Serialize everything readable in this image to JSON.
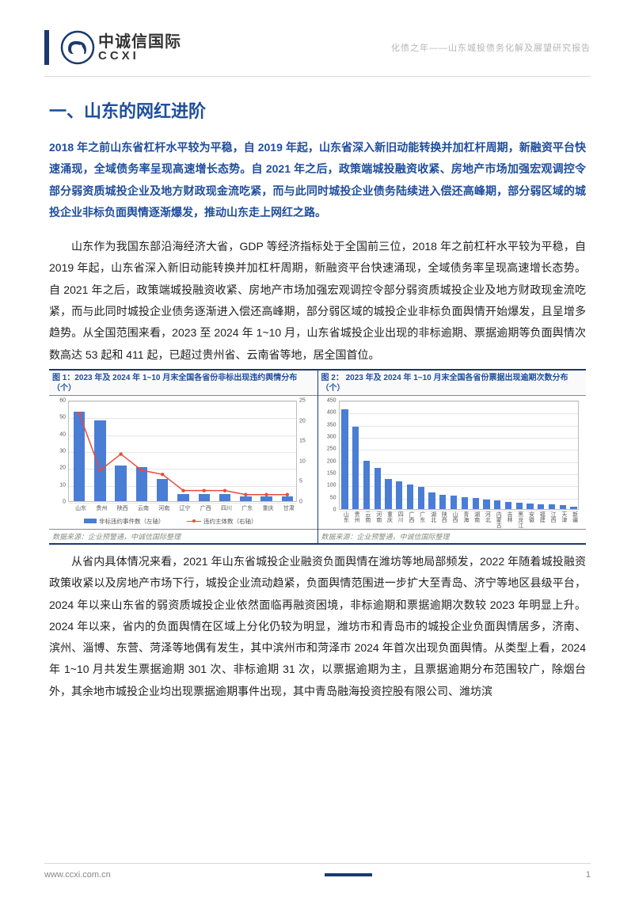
{
  "header": {
    "logo_cn": "中诚信国际",
    "logo_en": "CCXI",
    "subtitle": "化债之年——山东城投债务化解及展望研究报告"
  },
  "title": "一、山东的网红进阶",
  "lead": "2018 年之前山东省杠杆水平较为平稳，自 2019 年起，山东省深入新旧动能转换并加杠杆周期，新融资平台快速涌现，全域债务率呈现高速增长态势。自 2021 年之后，政策端城投融资收紧、房地产市场加强宏观调控令部分弱资质城投企业及地方财政现金流吃紧，而与此同时城投企业债务陆续进入偿还高峰期，部分弱区域的城投企业非标负面舆情逐渐爆发，推动山东走上网红之路。",
  "para1": "山东作为我国东部沿海经济大省，GDP 等经济指标处于全国前三位，2018 年之前杠杆水平较为平稳，自 2019 年起，山东省深入新旧动能转换并加杠杆周期，新融资平台快速涌现，全域债务率呈现高速增长态势。自 2021 年之后，政策端城投融资收紧、房地产市场加强宏观调控令部分弱资质城投企业及地方财政现金流吃紧，而与此同时城投企业债务逐渐进入偿还高峰期，部分弱区域的城投企业非标负面舆情开始爆发，且呈增多趋势。从全国范围来看，2023 至 2024 年 1~10 月，山东省城投企业出现的非标逾期、票据逾期等负面舆情次数高达 53 起和 411 起，已超过贵州省、云南省等地，居全国首位。",
  "para2": "从省内具体情况来看，2021 年山东省城投企业融资负面舆情在潍坊等地局部频发，2022 年随着城投融资政策收紧以及房地产市场下行，城投企业流动趋紧，负面舆情范围进一步扩大至青岛、济宁等地区县级平台，2024 年以来山东省的弱资质城投企业依然面临再融资困境，非标逾期和票据逾期次数较 2023 年明显上升。2024 年以来，省内的负面舆情在区域上分化仍较为明显，潍坊市和青岛市的城投企业负面舆情居多，济南、滨州、淄博、东营、菏泽等地偶有发生，其中滨州市和菏泽市 2024 年首次出现负面舆情。从类型上看，2024 年 1~10 月共发生票据逾期 301 次、非标逾期 31 次，以票据逾期为主，且票据逾期分布范围较广，除烟台外，其余地市城投企业均出现票据逾期事件出现，其中青岛融海投资控股有限公司、潍坊滨",
  "chart1": {
    "title": "图 1：2023 年及 2024 年 1~10 月末全国各省份非标出现违约舆情分布（个）",
    "source": "数据来源：企业预警通，中诚信国际整理",
    "categories": [
      "山东",
      "贵州",
      "陕西",
      "云南",
      "河南",
      "辽宁",
      "广西",
      "四川",
      "广东",
      "重庆",
      "甘肃"
    ],
    "bar_values": [
      53,
      48,
      21,
      20,
      13,
      4,
      4,
      4,
      3,
      3,
      3
    ],
    "bar_color": "#4a7dd4",
    "line_values": [
      22,
      8,
      12,
      8,
      7,
      3,
      3,
      3,
      2,
      2,
      2
    ],
    "line_color": "#e84c3d",
    "ylim_left": [
      0,
      60
    ],
    "ytick_step_left": 10,
    "ylim_right": [
      0,
      25
    ],
    "ytick_step_right": 5,
    "legend_bar": "非标违约事件数（左轴）",
    "legend_line": "违约主体数（右轴）",
    "bar_width": 0.55,
    "grid_color": "#e6e6e6",
    "background": "#ffffff"
  },
  "chart2": {
    "title": "图 2： 2023 年及 2024 年 1~10 月末全国各省份票据出现逾期次数分布（个）",
    "source": "数据来源：企业预警通，中诚信国际整理",
    "categories": [
      "山东",
      "贵州",
      "云南",
      "河南",
      "重庆",
      "四川",
      "广西",
      "广东",
      "湖北",
      "陕西",
      "山西",
      "青海",
      "湖南",
      "河北",
      "内蒙古",
      "吉林",
      "黑龙江",
      "安徽",
      "福建",
      "江西",
      "天津",
      "新疆"
    ],
    "bar_values": [
      411,
      340,
      200,
      170,
      125,
      115,
      100,
      90,
      70,
      60,
      55,
      50,
      45,
      40,
      35,
      30,
      25,
      22,
      20,
      18,
      15,
      10
    ],
    "bar_color": "#4a7dd4",
    "ylim": [
      0,
      450
    ],
    "ytick_step": 50,
    "bar_width": 0.6,
    "grid_color": "#e6e6e6",
    "background": "#ffffff"
  },
  "footer": {
    "url": "www.ccxi.com.cn",
    "page": "1"
  }
}
